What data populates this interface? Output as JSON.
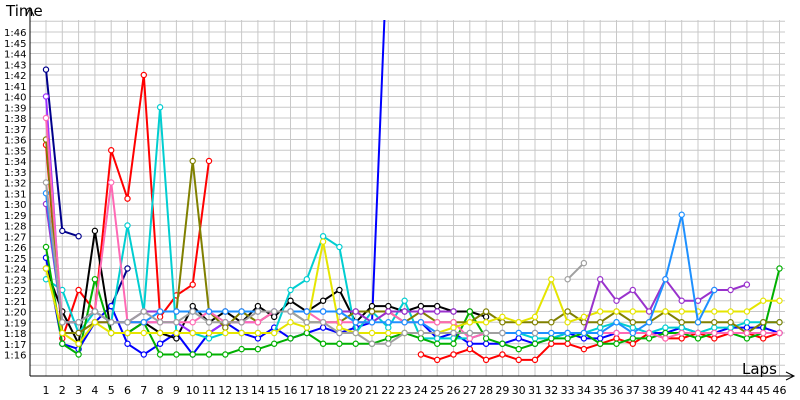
{
  "chart_data": {
    "type": "line",
    "title": "",
    "ylabel": "Time",
    "xlabel": "Laps",
    "grid": true,
    "legend": "none",
    "x": [
      1,
      2,
      3,
      4,
      5,
      6,
      7,
      8,
      9,
      10,
      11,
      12,
      13,
      14,
      15,
      16,
      17,
      18,
      19,
      20,
      21,
      22,
      23,
      24,
      25,
      26,
      27,
      28,
      29,
      30,
      31,
      32,
      33,
      34,
      35,
      36,
      37,
      38,
      39,
      40,
      41,
      42,
      43,
      44,
      45,
      46
    ],
    "x_tick_labels": [
      "1",
      "2",
      "3",
      "4",
      "5",
      "6",
      "7",
      "8",
      "9",
      "10",
      "11",
      "12",
      "13",
      "14",
      "15",
      "16",
      "17",
      "18",
      "19",
      "20",
      "21",
      "22",
      "23",
      "24",
      "25",
      "26",
      "27",
      "28",
      "29",
      "30",
      "31",
      "32",
      "33",
      "34",
      "35",
      "36",
      "37",
      "38",
      "39",
      "40",
      "41",
      "42",
      "43",
      "44",
      "45",
      "46"
    ],
    "y_tick_labels": [
      "1:16",
      "1:17",
      "1:18",
      "1:19",
      "1:20",
      "1:21",
      "1:22",
      "1:23",
      "1:24",
      "1:25",
      "1:26",
      "1:27",
      "1:28",
      "1:29",
      "1:30",
      "1:31",
      "1:32",
      "1:33",
      "1:34",
      "1:35",
      "1:36",
      "1:37",
      "1:38",
      "1:39",
      "1:40",
      "1:41",
      "1:42",
      "1:43",
      "1:44",
      "1:45",
      "1:46"
    ],
    "y_unit": "seconds",
    "ylim": [
      73,
      108
    ],
    "series": [
      {
        "color": "#ff0000",
        "values": [
          95.5,
          77.5,
          82,
          80,
          95,
          90.5,
          102,
          79.5,
          81.5,
          82.5,
          94,
          null,
          null,
          null,
          null,
          null,
          null,
          null,
          null,
          null,
          null,
          null,
          null,
          76,
          75.5,
          76,
          76.5,
          75.5,
          76,
          75.5,
          75.5,
          77,
          77,
          76.5,
          77,
          77.5,
          77,
          78,
          77.5,
          77.5,
          78,
          77.5,
          78,
          78,
          77.5,
          78
        ]
      },
      {
        "color": "#00008b",
        "values": [
          102.5,
          87.5,
          87,
          null,
          80.5,
          84,
          null,
          null,
          null,
          null,
          null,
          null,
          null,
          null,
          null,
          null,
          null,
          null,
          null,
          null,
          null,
          null,
          null,
          null,
          null,
          null,
          null,
          null,
          null,
          null,
          null,
          null,
          null,
          null,
          null,
          null,
          null,
          null,
          null,
          null,
          null,
          null,
          null,
          null,
          null,
          null
        ]
      },
      {
        "color": "#0000ff",
        "values": [
          85,
          77,
          76.5,
          79,
          80.5,
          77,
          76,
          77,
          78,
          76,
          78,
          79,
          78,
          77.5,
          78.5,
          77.5,
          78,
          78.5,
          78,
          78.5,
          79,
          116,
          null,
          79,
          77.5,
          78,
          77,
          77,
          77,
          77.5,
          77,
          77.5,
          78,
          77.5,
          77.5,
          78,
          78,
          78,
          78,
          78.5,
          78,
          78,
          78.5,
          78.5,
          78.5,
          78
        ]
      },
      {
        "color": "#000000",
        "values": [
          84,
          80,
          77,
          87.5,
          78,
          78,
          79,
          78,
          77.5,
          80.5,
          79,
          80,
          79,
          80.5,
          79.5,
          81,
          80,
          81,
          82,
          79,
          80.5,
          80.5,
          80,
          80.5,
          80.5,
          80,
          80,
          79.5,
          null,
          null,
          null,
          null,
          null,
          null,
          null,
          null,
          null,
          null,
          null,
          null,
          null,
          null,
          null,
          null,
          null,
          null
        ]
      },
      {
        "color": "#00ced1",
        "values": [
          83,
          82,
          78,
          80,
          79,
          88,
          80,
          99,
          78,
          78,
          77.5,
          78,
          78,
          78,
          78,
          82,
          83,
          87,
          86,
          78,
          80,
          78.5,
          81,
          77.5,
          77.5,
          77.5,
          77.5,
          78,
          78,
          78,
          77.5,
          77.5,
          78,
          78,
          78.5,
          79,
          78.5,
          78,
          78.5,
          78.5,
          78,
          78.5,
          78.5,
          79,
          79,
          79
        ]
      },
      {
        "color": "#00b000",
        "values": [
          86,
          77,
          76,
          83,
          78,
          78,
          79,
          76,
          76,
          76,
          76,
          76,
          76.5,
          76.5,
          77,
          77.5,
          78,
          77,
          77,
          77,
          77,
          77.5,
          78,
          77.5,
          77,
          77,
          80,
          77.5,
          77,
          76.5,
          77,
          77.5,
          77.5,
          78,
          77,
          77,
          77.5,
          77.5,
          78,
          78,
          77.5,
          78,
          78,
          77.5,
          78,
          84
        ]
      },
      {
        "color": "#9b30ff",
        "values": [
          100,
          78,
          78,
          79,
          79,
          79,
          79,
          79,
          79,
          78,
          78,
          79,
          79,
          79,
          80,
          80,
          80,
          80,
          80,
          80,
          80,
          80,
          80,
          80,
          80,
          80,
          null,
          null,
          null,
          null,
          null,
          null,
          null,
          null,
          null,
          null,
          null,
          null,
          null,
          null,
          null,
          null,
          null,
          null,
          null,
          null
        ]
      },
      {
        "color": "#808000",
        "values": [
          96,
          78,
          78,
          79,
          79,
          79,
          79,
          null,
          80,
          94,
          80,
          78.5,
          80,
          79,
          80,
          80,
          79,
          79,
          79,
          80,
          80,
          80,
          79,
          80,
          79,
          79,
          79,
          80,
          79,
          79,
          79,
          79,
          80,
          79,
          79,
          80,
          79,
          79,
          80,
          79,
          79,
          79,
          79,
          78,
          79,
          79
        ]
      },
      {
        "color": "#ff69b4",
        "values": [
          98,
          79,
          79,
          80,
          92,
          79,
          79,
          79,
          79,
          79,
          80,
          79,
          79,
          79,
          80,
          80,
          80,
          79,
          79,
          79,
          79,
          80,
          79,
          79,
          79,
          79,
          77.5,
          78,
          78,
          78,
          78,
          78,
          78,
          78,
          78,
          78,
          78,
          78,
          77.5,
          78,
          78,
          78,
          78,
          78,
          78,
          78
        ]
      },
      {
        "color": "#e5e500",
        "values": [
          84,
          78,
          77,
          79,
          78,
          78,
          78,
          78,
          78,
          78,
          78,
          78,
          78,
          78,
          78,
          79,
          78.5,
          86.5,
          78.5,
          78,
          78,
          78,
          78,
          78,
          78,
          78.5,
          79,
          79,
          79.5,
          79,
          79.5,
          83,
          79,
          79.5,
          80,
          80,
          80,
          80,
          80,
          80,
          80,
          80,
          80,
          80,
          81,
          81
        ]
      },
      {
        "color": "#9932cc",
        "values": [
          90,
          79,
          79,
          80,
          79,
          79,
          80,
          80,
          80,
          80,
          80,
          80,
          80,
          80,
          80,
          80,
          80,
          80,
          80,
          80,
          79,
          80,
          80,
          80,
          80,
          80,
          null,
          null,
          null,
          null,
          null,
          null,
          null,
          78,
          83,
          81,
          82,
          80,
          83,
          81,
          81,
          82,
          82,
          82.5,
          null,
          null
        ]
      },
      {
        "color": "#1e90ff",
        "values": [
          91,
          79,
          79,
          80,
          79,
          79,
          79,
          80,
          80,
          80,
          80,
          80,
          80,
          80,
          80,
          80,
          80,
          80,
          80,
          79,
          79,
          79,
          79,
          79,
          78,
          78,
          78,
          78,
          78,
          78,
          78,
          78,
          78,
          78,
          78,
          79,
          78,
          79,
          83,
          89,
          79,
          82,
          null,
          null,
          null,
          null
        ]
      },
      {
        "color": "#a0a0a0",
        "values": [
          92,
          79,
          79,
          80,
          79,
          79,
          80,
          79,
          79,
          80,
          79,
          79,
          79,
          80,
          80,
          80,
          79,
          79,
          78,
          78,
          77,
          77,
          78,
          78,
          78,
          78,
          78,
          78,
          78,
          null,
          78,
          null,
          83,
          84.5,
          null,
          null,
          null,
          null,
          null,
          null,
          null,
          null,
          null,
          null,
          null,
          null
        ]
      }
    ]
  }
}
